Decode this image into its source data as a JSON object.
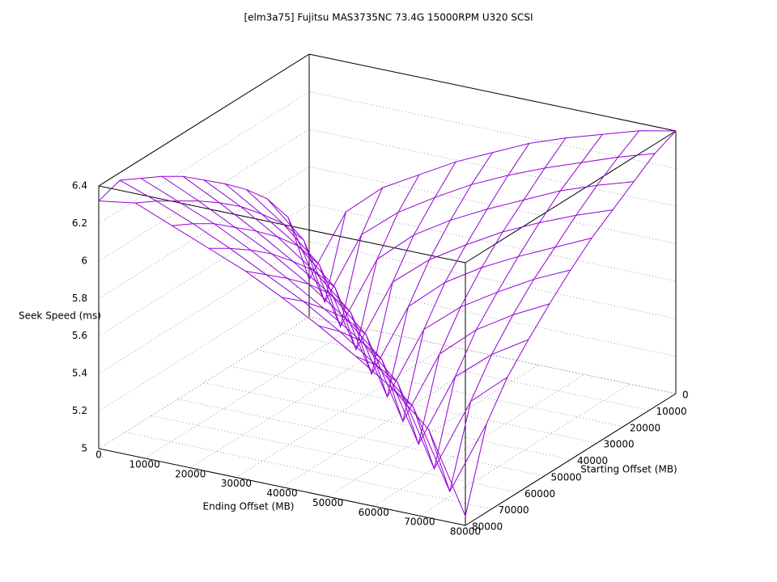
{
  "chart_data": {
    "type": "surface",
    "title": "[elm3a75] Fujitsu MAS3735NC 73.4G 15000RPM U320 SCSI",
    "xlabel": "Ending Offset (MB)",
    "ylabel": "Starting Offset (MB)",
    "zlabel": "Seek Speed (ms)",
    "color": "#9400d3",
    "x": [
      0,
      8000,
      16000,
      24000,
      32000,
      40000,
      48000,
      56000,
      64000,
      72000,
      80000
    ],
    "y": [
      0,
      8000,
      16000,
      24000,
      32000,
      40000,
      48000,
      56000,
      64000,
      72000,
      80000
    ],
    "z": [
      [
        5.2,
        5.6,
        5.77,
        5.88,
        5.99,
        6.08,
        6.17,
        6.24,
        6.3,
        6.36,
        6.4
      ],
      [
        5.6,
        5.19,
        5.59,
        5.75,
        5.87,
        5.98,
        6.07,
        6.15,
        6.22,
        6.29,
        6.35
      ],
      [
        5.77,
        5.59,
        5.17,
        5.57,
        5.74,
        5.86,
        5.96,
        6.05,
        6.14,
        6.21,
        6.27
      ],
      [
        5.89,
        5.75,
        5.57,
        5.16,
        5.56,
        5.72,
        5.84,
        5.95,
        6.04,
        6.12,
        6.19
      ],
      [
        5.99,
        5.87,
        5.74,
        5.56,
        5.14,
        5.54,
        5.71,
        5.83,
        5.93,
        6.02,
        6.11
      ],
      [
        6.08,
        5.98,
        5.86,
        5.72,
        5.54,
        5.13,
        5.53,
        5.69,
        5.81,
        5.92,
        6.01
      ],
      [
        6.17,
        6.07,
        5.96,
        5.84,
        5.71,
        5.53,
        5.11,
        5.51,
        5.68,
        5.8,
        5.9
      ],
      [
        6.24,
        6.15,
        6.05,
        5.95,
        5.83,
        5.69,
        5.51,
        5.1,
        5.5,
        5.66,
        5.78
      ],
      [
        6.3,
        6.22,
        6.14,
        6.04,
        5.93,
        5.81,
        5.68,
        5.5,
        5.08,
        5.48,
        5.65
      ],
      [
        6.36,
        6.29,
        6.21,
        6.12,
        6.02,
        5.92,
        5.8,
        5.66,
        5.48,
        5.07,
        5.47
      ],
      [
        6.32,
        6.35,
        6.27,
        6.19,
        6.11,
        6.01,
        5.9,
        5.78,
        5.65,
        5.47,
        5.05
      ]
    ],
    "xlim": [
      0,
      80000
    ],
    "ylim": [
      0,
      80000
    ],
    "zlim": [
      5,
      6.4
    ],
    "xticks": [
      0,
      10000,
      20000,
      30000,
      40000,
      50000,
      60000,
      70000,
      80000
    ],
    "yticks": [
      0,
      10000,
      20000,
      30000,
      40000,
      50000,
      60000,
      70000,
      80000
    ],
    "zticks": [
      5,
      5.2,
      5.4,
      5.6,
      5.8,
      6,
      6.2,
      6.4
    ],
    "grid": true
  }
}
